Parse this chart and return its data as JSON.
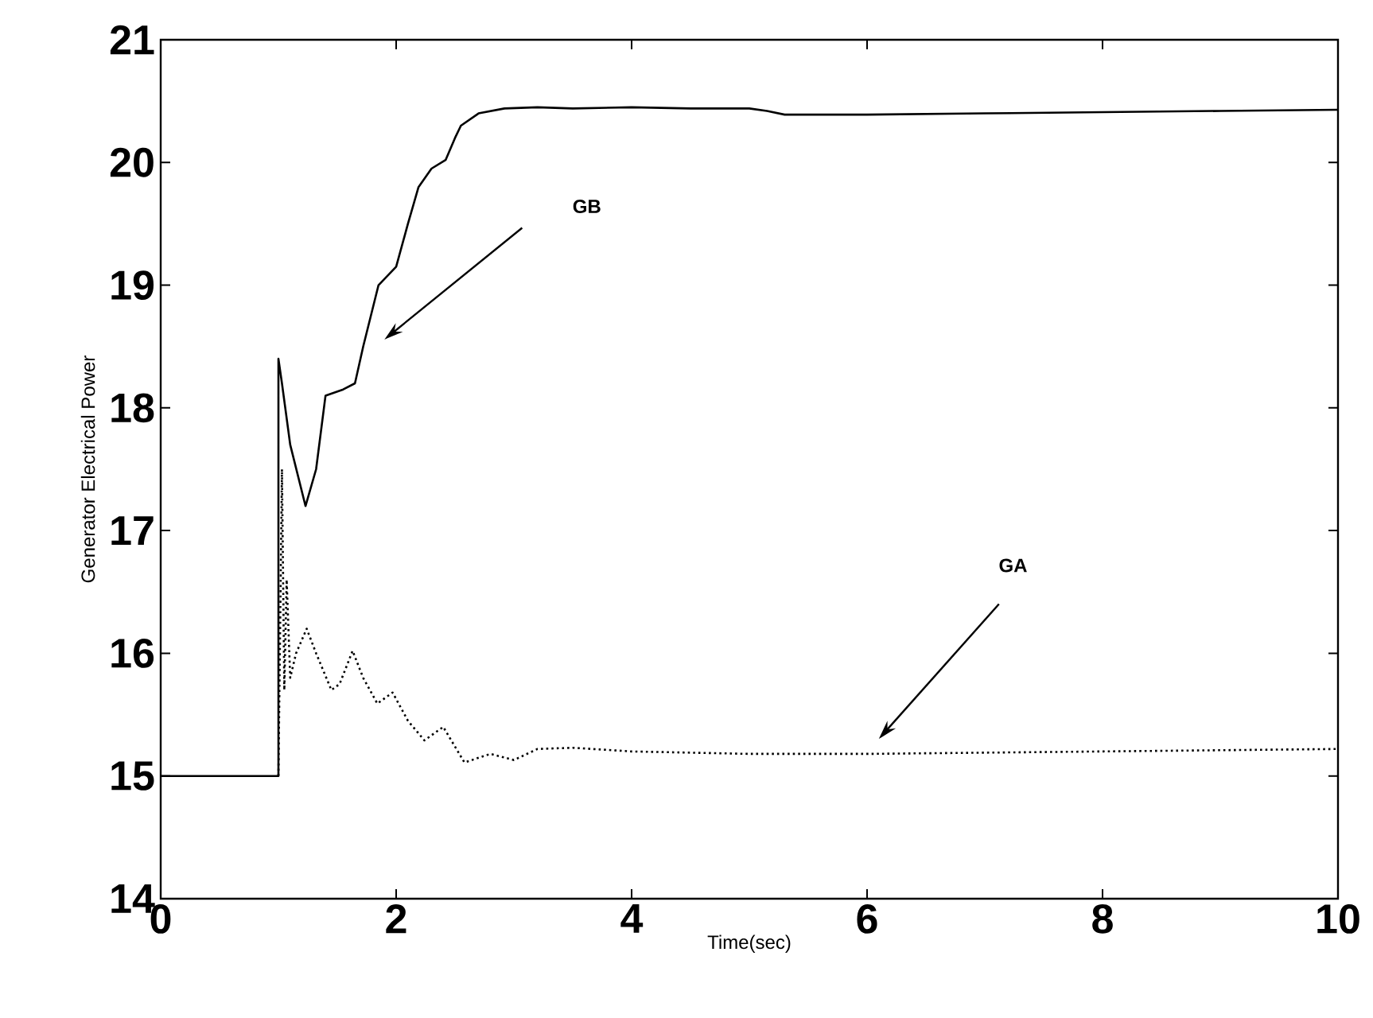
{
  "chart_data": {
    "type": "line",
    "xlabel": "Time(sec)",
    "ylabel": "Generator Electrical Power",
    "xlim": [
      0,
      10
    ],
    "ylim": [
      14,
      21
    ],
    "xticks": [
      0,
      2,
      4,
      6,
      8,
      10
    ],
    "yticks": [
      14,
      15,
      16,
      17,
      18,
      19,
      20,
      21
    ],
    "grid": false,
    "marker": "none",
    "series": [
      {
        "color": "#000000",
        "line_style": "solid",
        "x": [
          0,
          1.0,
          1.0,
          1.03,
          1.1,
          1.23,
          1.32,
          1.4,
          1.55,
          1.65,
          1.72,
          1.85,
          2.0,
          2.1,
          2.19,
          2.3,
          2.42,
          2.5,
          2.55,
          2.7,
          2.92,
          3.2,
          3.5,
          4.0,
          4.5,
          5.0,
          5.15,
          5.3,
          6,
          7,
          8,
          9,
          10
        ],
        "values": [
          15,
          15,
          18.4,
          18.2,
          17.7,
          17.2,
          17.5,
          18.1,
          18.15,
          18.2,
          18.5,
          19.0,
          19.15,
          19.5,
          19.8,
          19.95,
          20.02,
          20.2,
          20.3,
          20.4,
          20.44,
          20.45,
          20.44,
          20.45,
          20.44,
          20.44,
          20.42,
          20.39,
          20.39,
          20.4,
          20.41,
          20.42,
          20.43
        ]
      },
      {
        "color": "#000000",
        "line_style": "dotted",
        "x": [
          1.0,
          1.03,
          1.05,
          1.07,
          1.1,
          1.15,
          1.24,
          1.32,
          1.45,
          1.52,
          1.63,
          1.72,
          1.84,
          1.97,
          2.1,
          2.24,
          2.4,
          2.58,
          2.8,
          3.0,
          3.2,
          3.5,
          4.0,
          5.0,
          6.0,
          7.0,
          8.0,
          9.0,
          10.0
        ],
        "values": [
          15,
          17.5,
          15.7,
          16.6,
          15.8,
          16.0,
          16.2,
          16.0,
          15.7,
          15.75,
          16.02,
          15.8,
          15.59,
          15.68,
          15.45,
          15.29,
          15.4,
          15.11,
          15.18,
          15.13,
          15.22,
          15.23,
          15.2,
          15.18,
          15.18,
          15.19,
          15.2,
          15.21,
          15.22
        ]
      }
    ],
    "annotations": [
      "GB",
      "GA"
    ]
  }
}
